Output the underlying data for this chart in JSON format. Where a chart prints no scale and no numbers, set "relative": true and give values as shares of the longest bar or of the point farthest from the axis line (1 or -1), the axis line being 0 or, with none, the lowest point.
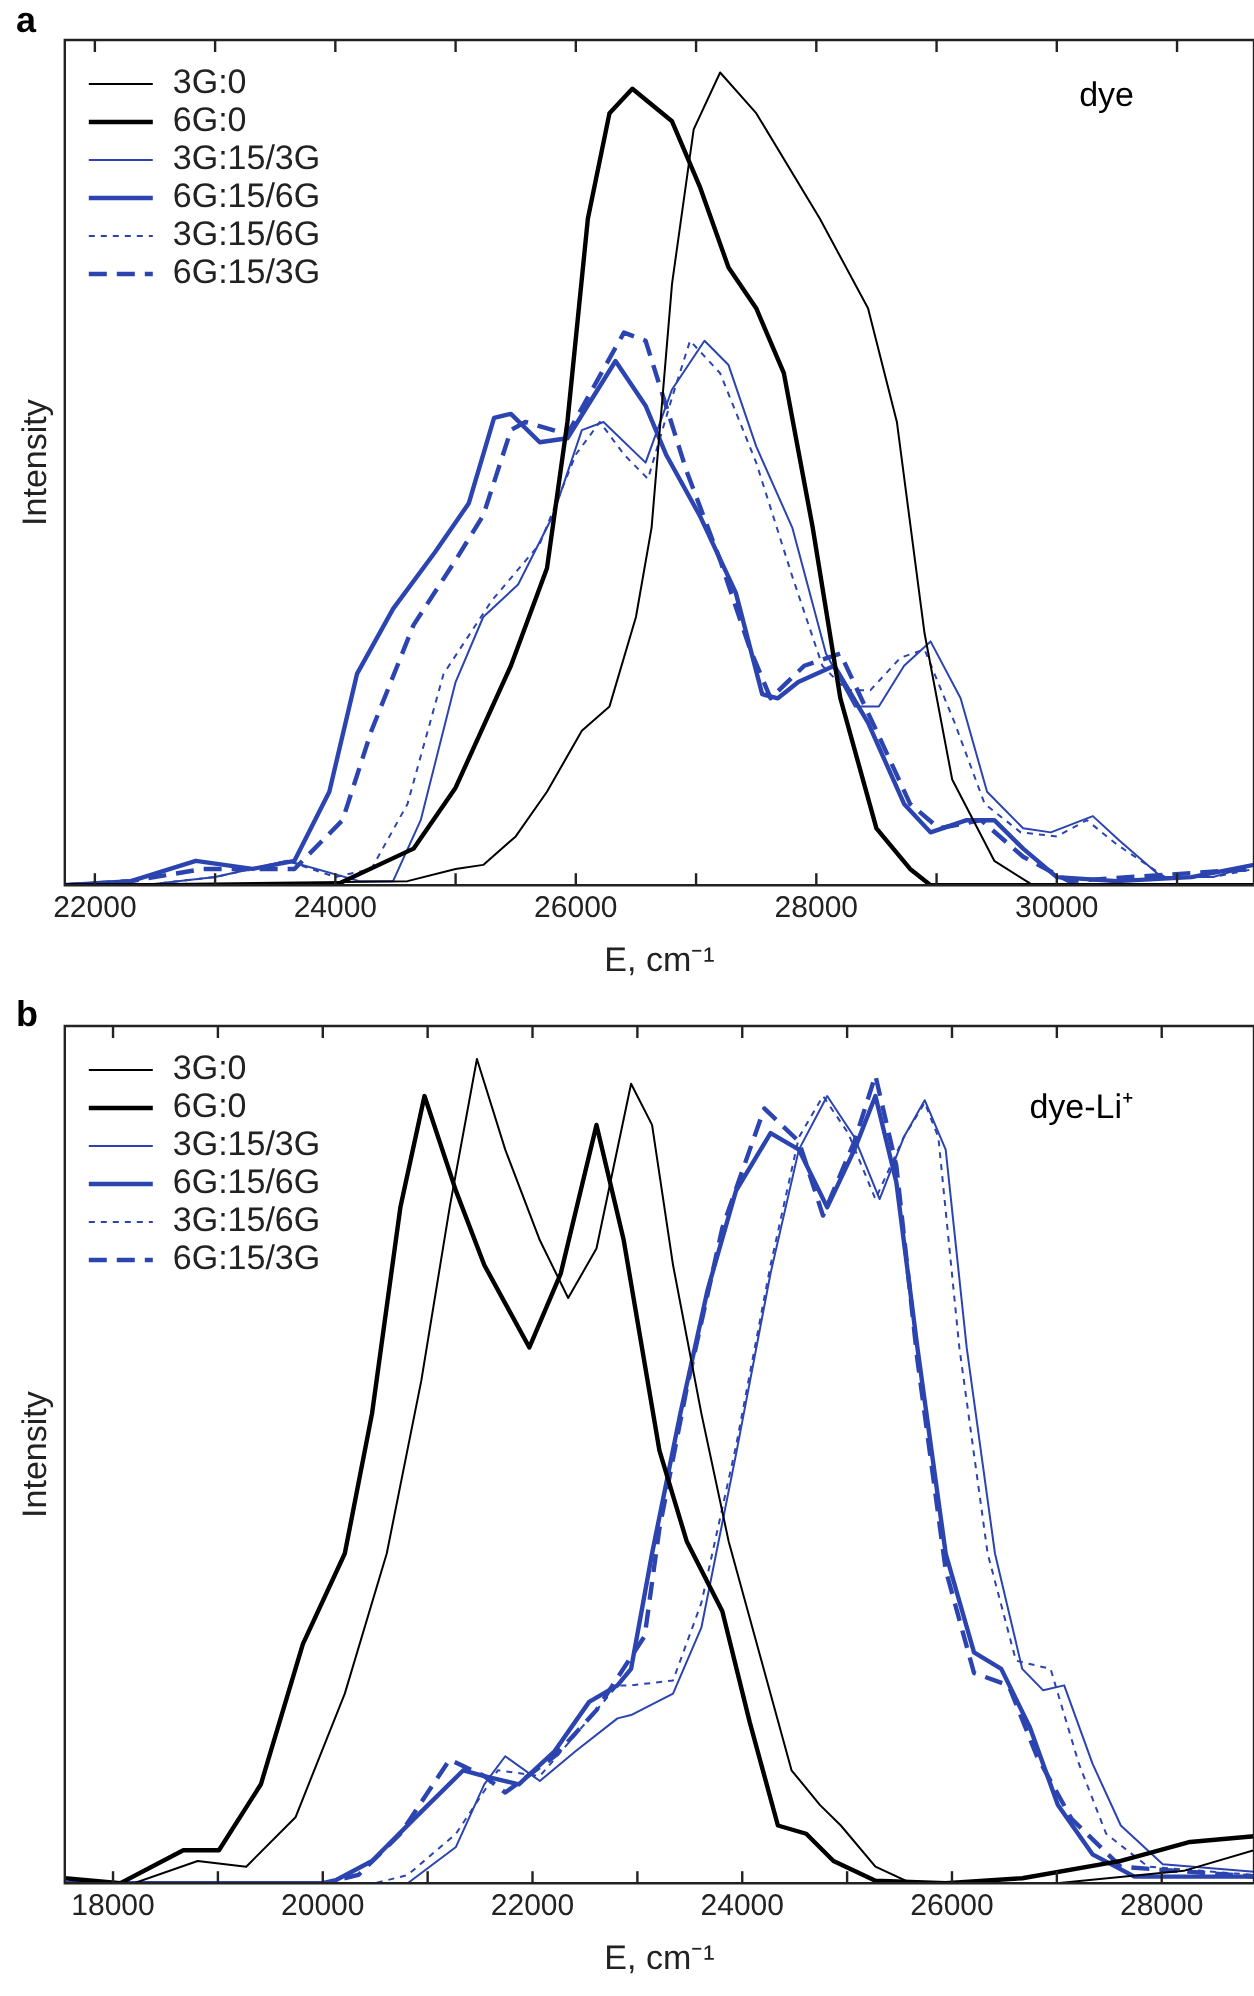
{
  "chart_data": [
    {
      "type": "line",
      "relative": true,
      "xlabel": "E, cm⁻¹",
      "ylabel": "Intensity",
      "annotations": [
        "a",
        "dye"
      ],
      "legend": "top left",
      "marker": "none",
      "grid": false,
      "xlim": [
        21750,
        31640
      ],
      "xticks": [
        22000,
        {
          "value": 23000,
          "label": null
        },
        24000,
        {
          "value": 25000,
          "label": null
        },
        26000,
        {
          "value": 27000,
          "label": null
        },
        28000,
        {
          "value": 29000,
          "label": null
        },
        30000,
        {
          "value": 31000,
          "label": null
        }
      ],
      "series": [
        {
          "name": "3G:0",
          "color": "#000000",
          "line_style": "solid",
          "x": [
            21750,
            24600,
            25000,
            25230,
            25500,
            25760,
            26050,
            26280,
            26500,
            26630,
            26800,
            26980,
            27200,
            27500,
            28030,
            28430,
            28670,
            28900,
            29130,
            29480,
            29800,
            31640
          ],
          "values": [
            0,
            0.005,
            0.02,
            0.025,
            0.06,
            0.115,
            0.19,
            0.22,
            0.33,
            0.44,
            0.74,
            0.93,
            1,
            0.95,
            0.82,
            0.71,
            0.57,
            0.31,
            0.13,
            0.03,
            0,
            0
          ]
        },
        {
          "name": "6G:0",
          "color": "#000000",
          "line_style": "solid",
          "x": [
            21750,
            24000,
            24650,
            25000,
            25460,
            25760,
            25930,
            26100,
            26280,
            26470,
            26800,
            27030,
            27270,
            27500,
            27730,
            27970,
            28200,
            28500,
            28780,
            28950,
            31640
          ],
          "values": [
            0,
            0,
            0.045,
            0.12,
            0.27,
            0.39,
            0.57,
            0.82,
            0.95,
            0.98,
            0.94,
            0.86,
            0.76,
            0.71,
            0.63,
            0.44,
            0.23,
            0.07,
            0.02,
            0,
            0
          ]
        },
        {
          "name": "3G:15/3G",
          "color": "#2b44b0",
          "line_style": "solid",
          "x": [
            21750,
            22400,
            23000,
            23600,
            24200,
            24480,
            24710,
            25000,
            25230,
            25520,
            25810,
            26050,
            26230,
            26580,
            26800,
            27070,
            27270,
            27500,
            27800,
            28080,
            28320,
            28520,
            28730,
            28950,
            29200,
            29420,
            29720,
            29950,
            30300,
            30520,
            30870,
            31300,
            31640
          ],
          "values": [
            0,
            0,
            0.01,
            0.03,
            0.005,
            0.005,
            0.08,
            0.25,
            0.33,
            0.37,
            0.455,
            0.56,
            0.57,
            0.52,
            0.61,
            0.67,
            0.64,
            0.54,
            0.44,
            0.285,
            0.22,
            0.22,
            0.27,
            0.3,
            0.23,
            0.115,
            0.07,
            0.065,
            0.085,
            0.055,
            0.01,
            0.01,
            0.025
          ]
        },
        {
          "name": "6G:15/6G",
          "color": "#2b44b0",
          "line_style": "solid",
          "x": [
            21750,
            22300,
            22840,
            23310,
            23660,
            23950,
            24180,
            24480,
            24830,
            25110,
            25320,
            25460,
            25700,
            25930,
            26330,
            26580,
            26750,
            27030,
            27330,
            27550,
            27680,
            27850,
            28150,
            28430,
            28730,
            28950,
            29250,
            29480,
            29720,
            30000,
            30500,
            31120,
            31640
          ],
          "values": [
            0,
            0.005,
            0.03,
            0.02,
            0.03,
            0.115,
            0.26,
            0.34,
            0.41,
            0.47,
            0.575,
            0.58,
            0.545,
            0.55,
            0.645,
            0.59,
            0.53,
            0.455,
            0.36,
            0.235,
            0.23,
            0.25,
            0.27,
            0.2,
            0.1,
            0.065,
            0.08,
            0.08,
            0.045,
            0.01,
            0.005,
            0.01,
            0.025
          ]
        },
        {
          "name": "3G:15/6G",
          "color": "#2b44b0",
          "line_style": "dotted",
          "x": [
            21750,
            22400,
            23000,
            23600,
            24000,
            24300,
            24600,
            24900,
            25300,
            25700,
            26000,
            26200,
            26400,
            26600,
            26800,
            26950,
            27200,
            27500,
            27800,
            28050,
            28250,
            28450,
            28700,
            28900,
            29150,
            29400,
            29700,
            30000,
            30250,
            30500,
            30900,
            31300,
            31640
          ],
          "values": [
            0,
            0,
            0.01,
            0.03,
            0.01,
            0.02,
            0.1,
            0.26,
            0.35,
            0.42,
            0.53,
            0.57,
            0.53,
            0.5,
            0.6,
            0.67,
            0.63,
            0.52,
            0.38,
            0.27,
            0.24,
            0.24,
            0.28,
            0.29,
            0.2,
            0.1,
            0.065,
            0.06,
            0.08,
            0.05,
            0.01,
            0.01,
            0.02
          ]
        },
        {
          "name": "6G:15/3G",
          "color": "#2b44b0",
          "line_style": "dashed",
          "x": [
            21750,
            22300,
            22900,
            23660,
            24060,
            24300,
            24650,
            25000,
            25230,
            25460,
            25580,
            25930,
            26400,
            26580,
            26920,
            27200,
            27450,
            27620,
            27900,
            28200,
            28500,
            28780,
            29020,
            29370,
            29720,
            30100,
            31640
          ],
          "values": [
            0,
            0.005,
            0.02,
            0.02,
            0.08,
            0.19,
            0.32,
            0.4,
            0.455,
            0.56,
            0.57,
            0.555,
            0.68,
            0.67,
            0.51,
            0.4,
            0.29,
            0.23,
            0.27,
            0.285,
            0.19,
            0.1,
            0.07,
            0.08,
            0.035,
            0.005,
            0.02
          ]
        }
      ]
    },
    {
      "type": "line",
      "relative": true,
      "xlabel": "E, cm⁻¹",
      "ylabel": "Intensity",
      "annotations": [
        "b",
        "dye-Li⁺"
      ],
      "legend": "top left",
      "marker": "none",
      "grid": false,
      "xlim": [
        17540,
        28880
      ],
      "xticks": [
        18000,
        {
          "value": 19000,
          "label": null
        },
        20000,
        {
          "value": 21000,
          "label": null
        },
        22000,
        {
          "value": 23000,
          "label": null
        },
        24000,
        {
          "value": 25000,
          "label": null
        },
        26000,
        {
          "value": 27000,
          "label": null
        },
        28000
      ],
      "series": [
        {
          "name": "3G:0",
          "color": "#000000",
          "line_style": "solid",
          "x": [
            17540,
            18200,
            18807,
            19270,
            19740,
            20210,
            20610,
            20940,
            21210,
            21470,
            21740,
            22070,
            22340,
            22610,
            22940,
            23140,
            23340,
            23610,
            23870,
            24140,
            24470,
            24740,
            24940,
            25270,
            25610,
            27000,
            28210,
            28880
          ],
          "values": [
            0,
            0,
            0.027,
            0.02,
            0.08,
            0.23,
            0.4,
            0.61,
            0.82,
            1,
            0.89,
            0.78,
            0.71,
            0.77,
            0.97,
            0.92,
            0.75,
            0.57,
            0.415,
            0.29,
            0.137,
            0.095,
            0.07,
            0.02,
            0,
            0,
            0.015,
            0.04
          ]
        },
        {
          "name": "6G:0",
          "color": "#000000",
          "line_style": "solid",
          "x": [
            17540,
            18070,
            18670,
            19010,
            19410,
            19810,
            20210,
            20470,
            20740,
            20970,
            21270,
            21540,
            21970,
            22270,
            22610,
            22870,
            23210,
            23470,
            23810,
            24070,
            24340,
            24610,
            24870,
            25270,
            25940,
            26670,
            27610,
            28270,
            28880
          ],
          "values": [
            0.006,
            0,
            0.04,
            0.04,
            0.12,
            0.29,
            0.4,
            0.57,
            0.82,
            0.955,
            0.84,
            0.75,
            0.65,
            0.74,
            0.92,
            0.78,
            0.525,
            0.415,
            0.33,
            0.196,
            0.07,
            0.06,
            0.027,
            0.003,
            0,
            0.006,
            0.027,
            0.05,
            0.057
          ]
        },
        {
          "name": "3G:15/3G",
          "color": "#2b44b0",
          "line_style": "solid",
          "x": [
            17540,
            20810,
            21270,
            21540,
            21740,
            22070,
            22410,
            22810,
            22940,
            23340,
            23610,
            23940,
            24270,
            24540,
            24810,
            25070,
            25310,
            25540,
            25740,
            25940,
            26140,
            26410,
            26670,
            26870,
            27070,
            27340,
            27610,
            28010,
            28880
          ],
          "values": [
            0,
            0,
            0.044,
            0.12,
            0.154,
            0.124,
            0.16,
            0.2,
            0.204,
            0.23,
            0.31,
            0.52,
            0.74,
            0.89,
            0.955,
            0.905,
            0.83,
            0.905,
            0.95,
            0.89,
            0.65,
            0.4,
            0.26,
            0.234,
            0.24,
            0.145,
            0.07,
            0.023,
            0.014
          ]
        },
        {
          "name": "6G:15/6G",
          "color": "#2b44b0",
          "line_style": "solid",
          "x": [
            17540,
            20070,
            20470,
            20870,
            21340,
            21540,
            21870,
            22210,
            22540,
            22810,
            22940,
            23140,
            23410,
            23670,
            23940,
            24270,
            24540,
            24810,
            25070,
            25270,
            25470,
            25670,
            25940,
            26210,
            26470,
            26740,
            27010,
            27340,
            27740,
            28880
          ],
          "values": [
            0,
            0,
            0.027,
            0.078,
            0.137,
            0.13,
            0.12,
            0.16,
            0.22,
            0.24,
            0.26,
            0.4,
            0.57,
            0.72,
            0.84,
            0.91,
            0.89,
            0.82,
            0.89,
            0.955,
            0.85,
            0.65,
            0.4,
            0.28,
            0.26,
            0.19,
            0.095,
            0.035,
            0.008,
            0.008
          ]
        },
        {
          "name": "3G:15/6G",
          "color": "#2b44b0",
          "line_style": "dotted",
          "x": [
            17540,
            20500,
            20810,
            21270,
            21670,
            22070,
            22410,
            22810,
            22940,
            23340,
            23610,
            23940,
            24270,
            24540,
            24770,
            25010,
            25270,
            25540,
            25740,
            25870,
            26070,
            26340,
            26610,
            26940,
            27210,
            27470,
            27870,
            28880
          ],
          "values": [
            0,
            0,
            0.01,
            0.06,
            0.137,
            0.13,
            0.18,
            0.24,
            0.24,
            0.246,
            0.34,
            0.53,
            0.75,
            0.905,
            0.955,
            0.91,
            0.83,
            0.905,
            0.947,
            0.905,
            0.65,
            0.4,
            0.27,
            0.26,
            0.145,
            0.06,
            0.02,
            0.01
          ]
        },
        {
          "name": "6G:15/3G",
          "color": "#2b44b0",
          "line_style": "dashed",
          "x": [
            17540,
            20000,
            20340,
            20740,
            21210,
            21540,
            21740,
            22210,
            22610,
            23070,
            23210,
            23470,
            23810,
            24210,
            24540,
            24770,
            25070,
            25270,
            25470,
            25670,
            25940,
            26210,
            26540,
            26810,
            27140,
            27610,
            28880
          ],
          "values": [
            0,
            0,
            0.01,
            0.06,
            0.15,
            0.13,
            0.11,
            0.154,
            0.21,
            0.3,
            0.43,
            0.6,
            0.795,
            0.94,
            0.9,
            0.81,
            0.9,
            0.98,
            0.87,
            0.635,
            0.38,
            0.255,
            0.24,
            0.154,
            0.078,
            0.02,
            0.008
          ]
        }
      ]
    }
  ]
}
